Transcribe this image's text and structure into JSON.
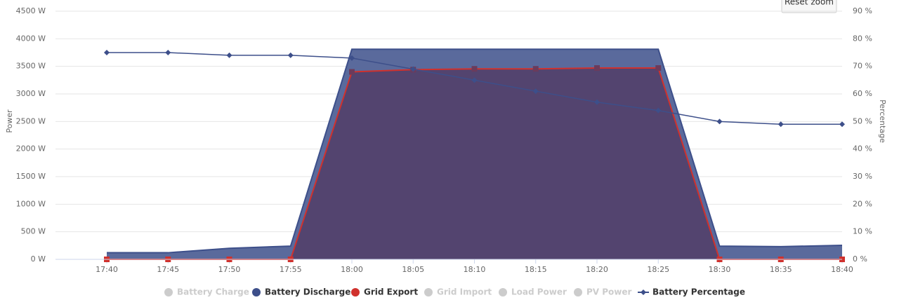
{
  "chart_data": {
    "type": "area",
    "button": "Reset zoom",
    "y_label": "Power",
    "y2_label": "Percentage",
    "x": [
      "17:40",
      "17:45",
      "17:50",
      "17:55",
      "18:00",
      "18:05",
      "18:10",
      "18:15",
      "18:20",
      "18:25",
      "18:30",
      "18:35",
      "18:40"
    ],
    "ylim": [
      0,
      4500
    ],
    "yticks": [
      {
        "value": 0,
        "label": "0 W"
      },
      {
        "value": 500,
        "label": "500 W"
      },
      {
        "value": 1000,
        "label": "1000 W"
      },
      {
        "value": 1500,
        "label": "1500 W"
      },
      {
        "value": 2000,
        "label": "2000 W"
      },
      {
        "value": 2500,
        "label": "2500 W"
      },
      {
        "value": 3000,
        "label": "3000 W"
      },
      {
        "value": 3500,
        "label": "3500 W"
      },
      {
        "value": 4000,
        "label": "4000 W"
      },
      {
        "value": 4500,
        "label": "4500 W"
      }
    ],
    "y2lim": [
      0,
      90
    ],
    "y2ticks": [
      {
        "value": 0,
        "label": "0 %"
      },
      {
        "value": 10,
        "label": "10 %"
      },
      {
        "value": 20,
        "label": "20 %"
      },
      {
        "value": 30,
        "label": "30 %"
      },
      {
        "value": 40,
        "label": "40 %"
      },
      {
        "value": 50,
        "label": "50 %"
      },
      {
        "value": 60,
        "label": "60 %"
      },
      {
        "value": 70,
        "label": "70 %"
      },
      {
        "value": 80,
        "label": "80 %"
      },
      {
        "value": 90,
        "label": "90 %"
      }
    ],
    "grid": true,
    "legend": "bottom",
    "series": [
      {
        "name": "Battery Charge",
        "visible": false
      },
      {
        "name": "Battery Discharge",
        "color": "#3d4f8a",
        "kind": "area",
        "values": [
          120,
          120,
          200,
          240,
          3810,
          3810,
          3810,
          3810,
          3810,
          3810,
          240,
          230,
          255
        ]
      },
      {
        "name": "Grid Export",
        "color": "#d0312d",
        "kind": "area",
        "values": [
          0,
          0,
          0,
          0,
          3400,
          3440,
          3455,
          3455,
          3470,
          3470,
          0,
          0,
          0
        ]
      },
      {
        "name": "Grid Import",
        "visible": false
      },
      {
        "name": "Load Power",
        "visible": false
      },
      {
        "name": "PV Power",
        "visible": false
      },
      {
        "name": "Battery Percentage",
        "color": "#3d4f8a",
        "kind": "line",
        "axis": "y2",
        "values": [
          75,
          75,
          74,
          74,
          73,
          69,
          65,
          61,
          57,
          54,
          50,
          49,
          49
        ]
      }
    ]
  }
}
